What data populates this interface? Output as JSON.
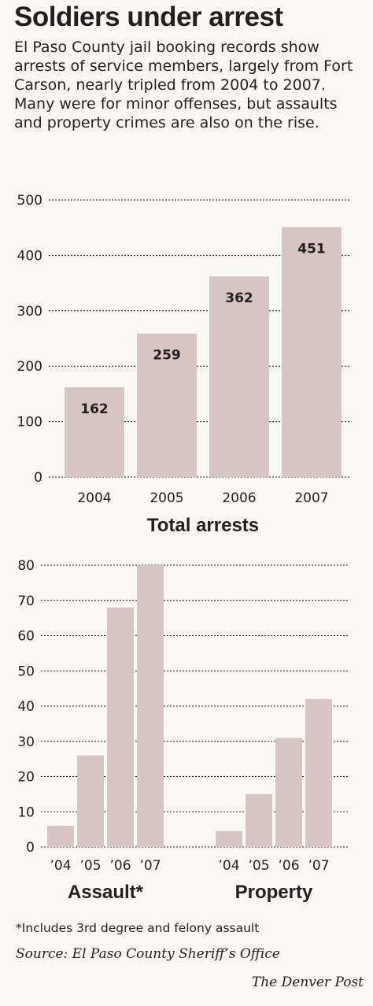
{
  "header": {
    "title": "Soldiers under arrest",
    "intro": "El Paso County jail booking records show arrests of service members, largely from Fort Carson, nearly tripled from 2004 to 2007. Many were for minor offenses, but assaults and property crimes are also on the rise."
  },
  "chart_data": [
    {
      "type": "bar",
      "title": "Total arrests",
      "categories": [
        "2004",
        "2005",
        "2006",
        "2007"
      ],
      "values": [
        162,
        259,
        362,
        451
      ],
      "data_labels": [
        "162",
        "259",
        "362",
        "451"
      ],
      "yticks": [
        "0",
        "100",
        "200",
        "300",
        "400",
        "500"
      ],
      "ylim": [
        0,
        500
      ],
      "grid": true
    },
    {
      "type": "bar",
      "yticks": [
        "0",
        "10",
        "20",
        "30",
        "40",
        "50",
        "60",
        "70",
        "80"
      ],
      "ylim": [
        0,
        80
      ],
      "grid": true,
      "groups": [
        {
          "title": "Assault*",
          "categories": [
            "’04",
            "’05",
            "’06",
            "’07"
          ],
          "values": [
            6,
            26,
            68,
            80
          ]
        },
        {
          "title": "Property",
          "categories": [
            "’04",
            "’05",
            "’06",
            "’07"
          ],
          "values": [
            4.5,
            15,
            31,
            42
          ]
        }
      ]
    }
  ],
  "colors": {
    "bar": "#d7c5c4",
    "text": "#231f20",
    "grid": "#231f20",
    "background": "#faf8f4"
  },
  "footer": {
    "note": "*Includes 3rd degree and felony assault",
    "source": "Source: El Paso County Sheriff’s Office",
    "credit": "The Denver Post"
  }
}
